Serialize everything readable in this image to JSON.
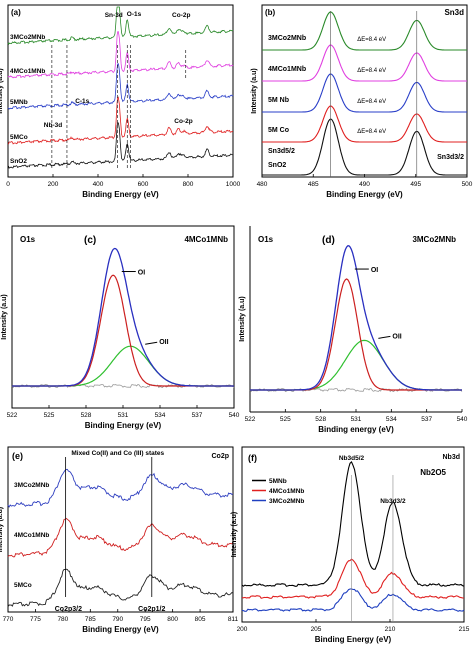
{
  "chart_data": [
    {
      "type": "line",
      "panel": "(a)",
      "xlabel": "Binding Energy (eV)",
      "ylabel": "Intensity (a.u)",
      "xlim": [
        0,
        1000
      ],
      "xticks": [
        0,
        200,
        400,
        600,
        800,
        1000
      ],
      "series": [
        {
          "name": "3MCo2MNb",
          "color": "#2a8a2a",
          "offset": 4
        },
        {
          "name": "4MCo1MNb",
          "color": "#e040e0",
          "offset": 3
        },
        {
          "name": "5MNb",
          "color": "#2a3fc8",
          "offset": 2
        },
        {
          "name": "5MCo",
          "color": "#e02020",
          "offset": 1
        },
        {
          "name": "SnO2",
          "color": "#111111",
          "offset": 0
        }
      ],
      "peaks": [
        {
          "x": 486,
          "h": 1.0,
          "w": 5
        },
        {
          "x": 495,
          "h": 0.8,
          "w": 5
        },
        {
          "x": 530,
          "h": 0.55,
          "w": 6
        },
        {
          "x": 716,
          "h": 0.2,
          "w": 8
        },
        {
          "x": 757,
          "h": 0.15,
          "w": 8
        },
        {
          "x": 885,
          "h": 0.2,
          "w": 8
        },
        {
          "x": 285,
          "h": 0.06,
          "w": 6
        },
        {
          "x": 780,
          "h": 0.08,
          "w": 8
        }
      ],
      "annotations": [
        "Sn-3d",
        "O-1s",
        "Co-2p",
        "Co-2p",
        "Nb-3d",
        "C-1s"
      ]
    },
    {
      "type": "line",
      "panel": "(b)",
      "title": "Sn3d",
      "xlabel": "Binding Energy (eV)",
      "ylabel": "Intensity (a.u)",
      "xlim": [
        480,
        500
      ],
      "xticks": [
        480,
        485,
        490,
        495,
        500
      ],
      "series": [
        {
          "name": "3MCo2MNb",
          "color": "#2a8a2a",
          "offset": 4
        },
        {
          "name": "4MCo1MNb",
          "color": "#e040e0",
          "offset": 3
        },
        {
          "name": "5M Nb",
          "color": "#2a3fc8",
          "offset": 2
        },
        {
          "name": "5M Co",
          "color": "#e02020",
          "offset": 1
        },
        {
          "name": "SnO2",
          "color": "#111111",
          "offset": 0
        }
      ],
      "peaks": [
        {
          "x": 486.7,
          "label": "Sn3d5/2"
        },
        {
          "x": 495.1,
          "label": "Sn3d3/2"
        }
      ],
      "delta_label": "ΔE=8.4 eV"
    },
    {
      "type": "line",
      "panel": "(c)",
      "title": "4MCo1MNb",
      "corner_label": "O1s",
      "xlabel": "Binding Energy (eV)",
      "ylabel": "Intensity (a.u)",
      "xlim": [
        522,
        540
      ],
      "xticks": [
        522,
        525,
        528,
        531,
        534,
        537,
        540
      ],
      "components": [
        {
          "name": "OI",
          "center": 530.2,
          "height": 0.78,
          "width": 1.0,
          "color": "#cc2020"
        },
        {
          "name": "OII",
          "center": 531.6,
          "height": 0.28,
          "width": 1.5,
          "color": "#30c030"
        }
      ],
      "envelope_color": "#2a30c0",
      "background_color": "#999999"
    },
    {
      "type": "line",
      "panel": "(d)",
      "title": "3MCo2MNb",
      "corner_label": "O1s",
      "xlabel": "Binding energy (eV)",
      "ylabel": "Intensity (a.u)",
      "xlim": [
        522,
        540
      ],
      "xticks": [
        522,
        525,
        528,
        531,
        534,
        537,
        540
      ],
      "components": [
        {
          "name": "OI",
          "center": 530.2,
          "height": 0.76,
          "width": 0.95,
          "color": "#cc2020"
        },
        {
          "name": "OII",
          "center": 531.7,
          "height": 0.34,
          "width": 1.6,
          "color": "#30c030"
        }
      ],
      "envelope_color": "#2a30c0",
      "background_color": "#999999"
    },
    {
      "type": "line",
      "panel": "(e)",
      "title": "Co2p",
      "annotation": "Mixed Co(II) and Co (III) states",
      "xlabel": "Binding Energy (eV)",
      "ylabel": "Intensity (a.u)",
      "xlim": [
        770,
        811
      ],
      "xticks": [
        770,
        775,
        780,
        785,
        790,
        795,
        800,
        805,
        811
      ],
      "series": [
        {
          "name": "3MCo2MNb",
          "color": "#3040c0",
          "offset": 2
        },
        {
          "name": "4MCo1MNb",
          "color": "#d02020",
          "offset": 1
        },
        {
          "name": "5MCo",
          "color": "#222222",
          "offset": 0
        }
      ],
      "peaks": [
        {
          "x": 780.5,
          "label": "Co2p3/2"
        },
        {
          "x": 796.2,
          "label": "Co2p1/2"
        }
      ]
    },
    {
      "type": "line",
      "panel": "(f)",
      "title": "Nb3d",
      "subtitle": "Nb2O5",
      "xlabel": "Binding Energy (eV)",
      "ylabel": "Intensity (a.u)",
      "xlim": [
        200,
        215
      ],
      "xticks": [
        200,
        205,
        210,
        215
      ],
      "series": [
        {
          "name": "5MNb",
          "color": "#000000",
          "offset": 2
        },
        {
          "name": "4MCo1MNb",
          "color": "#e02020",
          "offset": 1
        },
        {
          "name": "3MCo2MNb",
          "color": "#2040c0",
          "offset": 0
        }
      ],
      "peaks": [
        {
          "x": 207.4,
          "label": "Nb3d5/2"
        },
        {
          "x": 210.2,
          "label": "Nb3d3/2"
        }
      ]
    }
  ]
}
